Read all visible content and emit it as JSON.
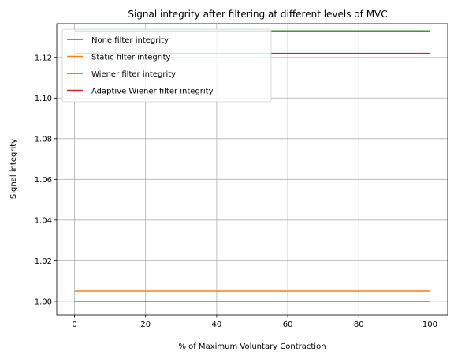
{
  "chart_data": {
    "type": "line",
    "title": "Signal integrity after filtering at different levels of MVC",
    "xlabel": "% of Maximum Voluntary Contraction",
    "ylabel": "Signal integrity",
    "xlim": [
      -5,
      105
    ],
    "ylim": [
      0.99335,
      1.1366
    ],
    "xticks": [
      0,
      20,
      40,
      60,
      80,
      100
    ],
    "yticks": [
      1.0,
      1.02,
      1.04,
      1.06,
      1.08,
      1.1,
      1.12
    ],
    "xtick_labels": [
      "0",
      "20",
      "40",
      "60",
      "80",
      "100"
    ],
    "ytick_labels": [
      "1.00",
      "1.02",
      "1.04",
      "1.06",
      "1.08",
      "1.10",
      "1.12"
    ],
    "grid": true,
    "legend_position": "top-left",
    "x": [
      0,
      100
    ],
    "series": [
      {
        "name": "None filter integrity",
        "values": [
          1.0,
          1.0
        ],
        "color": "#1f77b4"
      },
      {
        "name": "Static filter integrity",
        "values": [
          1.005,
          1.005
        ],
        "color": "#ff7f0e"
      },
      {
        "name": "Wiener filter integrity",
        "values": [
          1.133,
          1.133
        ],
        "color": "#2ca02c"
      },
      {
        "name": "Adaptive Wiener filter integrity",
        "values": [
          1.122,
          1.122
        ],
        "color": "#d62728"
      }
    ]
  }
}
